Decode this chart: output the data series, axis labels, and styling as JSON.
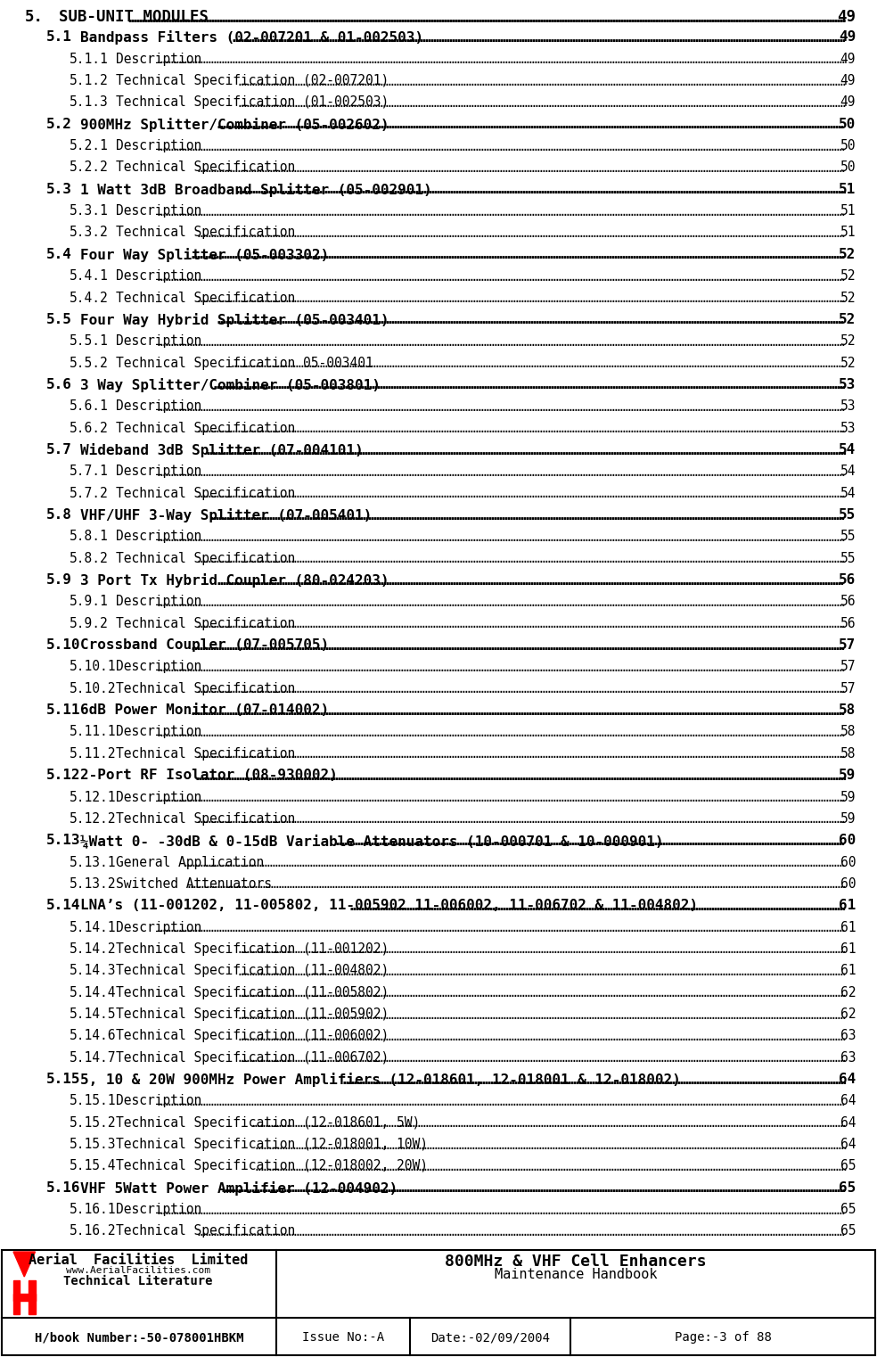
{
  "toc_entries": [
    {
      "level": 1,
      "number": "5.",
      "text": "SUB-UNIT MODULES",
      "page": "49",
      "bold": true
    },
    {
      "level": 2,
      "number": "5.1",
      "text": "Bandpass Filters (02-007201 & 01-002503)",
      "page": "49",
      "bold": true
    },
    {
      "level": 3,
      "number": "5.1.1",
      "text": "Description",
      "page": "49",
      "bold": false
    },
    {
      "level": 3,
      "number": "5.1.2",
      "text": "Technical Specification (02-007201)",
      "page": "49",
      "bold": false
    },
    {
      "level": 3,
      "number": "5.1.3",
      "text": "Technical Specification (01-002503)",
      "page": "49",
      "bold": false
    },
    {
      "level": 2,
      "number": "5.2",
      "text": "900MHz Splitter/Combiner (05-002602)",
      "page": "50",
      "bold": true
    },
    {
      "level": 3,
      "number": "5.2.1",
      "text": "Description",
      "page": "50",
      "bold": false
    },
    {
      "level": 3,
      "number": "5.2.2",
      "text": "Technical Specification",
      "page": "50",
      "bold": false
    },
    {
      "level": 2,
      "number": "5.3",
      "text": "1 Watt 3dB Broadband Splitter (05-002901)",
      "page": "51",
      "bold": true
    },
    {
      "level": 3,
      "number": "5.3.1",
      "text": "Description",
      "page": "51",
      "bold": false
    },
    {
      "level": 3,
      "number": "5.3.2",
      "text": "Technical Specification",
      "page": "51",
      "bold": false
    },
    {
      "level": 2,
      "number": "5.4",
      "text": "Four Way Splitter (05-003302)",
      "page": "52",
      "bold": true
    },
    {
      "level": 3,
      "number": "5.4.1",
      "text": "Description",
      "page": "52",
      "bold": false
    },
    {
      "level": 3,
      "number": "5.4.2",
      "text": "Technical Specification",
      "page": "52",
      "bold": false
    },
    {
      "level": 2,
      "number": "5.5",
      "text": "Four Way Hybrid Splitter (05-003401)",
      "page": "52",
      "bold": true
    },
    {
      "level": 3,
      "number": "5.5.1",
      "text": "Description",
      "page": "52",
      "bold": false
    },
    {
      "level": 3,
      "number": "5.5.2",
      "text": "Technical Specification 05-003401",
      "page": "52",
      "bold": false
    },
    {
      "level": 2,
      "number": "5.6",
      "text": "3 Way Splitter/Combiner (05-003801)",
      "page": "53",
      "bold": true
    },
    {
      "level": 3,
      "number": "5.6.1",
      "text": "Description",
      "page": "53",
      "bold": false
    },
    {
      "level": 3,
      "number": "5.6.2",
      "text": "Technical Specification",
      "page": "53",
      "bold": false
    },
    {
      "level": 2,
      "number": "5.7",
      "text": "Wideband 3dB Splitter (07-004101)",
      "page": "54",
      "bold": true
    },
    {
      "level": 3,
      "number": "5.7.1",
      "text": "Description",
      "page": "54",
      "bold": false
    },
    {
      "level": 3,
      "number": "5.7.2",
      "text": "Technical Specification",
      "page": "54",
      "bold": false
    },
    {
      "level": 2,
      "number": "5.8",
      "text": "VHF/UHF 3-Way Splitter (07-005401)",
      "page": "55",
      "bold": true
    },
    {
      "level": 3,
      "number": "5.8.1",
      "text": "Description",
      "page": "55",
      "bold": false
    },
    {
      "level": 3,
      "number": "5.8.2",
      "text": "Technical Specification",
      "page": "55",
      "bold": false
    },
    {
      "level": 2,
      "number": "5.9",
      "text": "3 Port Tx Hybrid Coupler (80-024203)",
      "page": "56",
      "bold": true
    },
    {
      "level": 3,
      "number": "5.9.1",
      "text": "Description",
      "page": "56",
      "bold": false
    },
    {
      "level": 3,
      "number": "5.9.2",
      "text": "Technical Specification",
      "page": "56",
      "bold": false
    },
    {
      "level": 2,
      "number": "5.10",
      "text": "Crossband Coupler (07-005705)",
      "page": "57",
      "bold": true
    },
    {
      "level": 3,
      "number": "5.10.1",
      "text": "Description",
      "page": "57",
      "bold": false
    },
    {
      "level": 3,
      "number": "5.10.2",
      "text": "Technical Specification",
      "page": "57",
      "bold": false
    },
    {
      "level": 2,
      "number": "5.11",
      "text": "6dB Power Monitor (07-014002)",
      "page": "58",
      "bold": true
    },
    {
      "level": 3,
      "number": "5.11.1",
      "text": "Description",
      "page": "58",
      "bold": false
    },
    {
      "level": 3,
      "number": "5.11.2",
      "text": "Technical Specification",
      "page": "58",
      "bold": false
    },
    {
      "level": 2,
      "number": "5.12",
      "text": "2-Port RF Isolator (08-930002)",
      "page": "59",
      "bold": true
    },
    {
      "level": 3,
      "number": "5.12.1",
      "text": "Description",
      "page": "59",
      "bold": false
    },
    {
      "level": 3,
      "number": "5.12.2",
      "text": "Technical Specification",
      "page": "59",
      "bold": false
    },
    {
      "level": 2,
      "number": "5.13",
      "text": "¼Watt 0- -30dB & 0-15dB Variable Attenuators (10-000701 & 10-000901)",
      "page": "60",
      "bold": true
    },
    {
      "level": 3,
      "number": "5.13.1",
      "text": "General Application",
      "page": "60",
      "bold": false
    },
    {
      "level": 3,
      "number": "5.13.2",
      "text": "Switched Attenuators",
      "page": "60",
      "bold": false
    },
    {
      "level": 2,
      "number": "5.14",
      "text": "LNA’s (11-001202, 11-005802, 11-005902 11-006002, 11-006702 & 11-004802)",
      "page": "61",
      "bold": true
    },
    {
      "level": 3,
      "number": "5.14.1",
      "text": "Description",
      "page": "61",
      "bold": false
    },
    {
      "level": 3,
      "number": "5.14.2",
      "text": "Technical Specification (11-001202)",
      "page": "61",
      "bold": false
    },
    {
      "level": 3,
      "number": "5.14.3",
      "text": "Technical Specification (11-004802)",
      "page": "61",
      "bold": false
    },
    {
      "level": 3,
      "number": "5.14.4",
      "text": "Technical Specification (11-005802)",
      "page": "62",
      "bold": false
    },
    {
      "level": 3,
      "number": "5.14.5",
      "text": "Technical Specification (11-005902)",
      "page": "62",
      "bold": false
    },
    {
      "level": 3,
      "number": "5.14.6",
      "text": "Technical Specification (11-006002)",
      "page": "63",
      "bold": false
    },
    {
      "level": 3,
      "number": "5.14.7",
      "text": "Technical Specification (11-006702)",
      "page": "63",
      "bold": false
    },
    {
      "level": 2,
      "number": "5.15",
      "text": "5, 10 & 20W 900MHz Power Amplifiers (12-018601, 12-018001 & 12-018002)",
      "page": "64",
      "bold": true
    },
    {
      "level": 3,
      "number": "5.15.1",
      "text": "Description",
      "page": "64",
      "bold": false
    },
    {
      "level": 3,
      "number": "5.15.2",
      "text": "Technical Specification (12-018601, 5W)",
      "page": "64",
      "bold": false
    },
    {
      "level": 3,
      "number": "5.15.3",
      "text": "Technical Specification (12-018001, 10W)",
      "page": "64",
      "bold": false
    },
    {
      "level": 3,
      "number": "5.15.4",
      "text": "Technical Specification (12-018002, 20W)",
      "page": "65",
      "bold": false
    },
    {
      "level": 2,
      "number": "5.16",
      "text": "VHF 5Watt Power Amplifier (12-004902)",
      "page": "65",
      "bold": true
    },
    {
      "level": 3,
      "number": "5.16.1",
      "text": "Description",
      "page": "65",
      "bold": false
    },
    {
      "level": 3,
      "number": "5.16.2",
      "text": "Technical Specification",
      "page": "65",
      "bold": false
    }
  ],
  "footer": {
    "company_name": "Aerial  Facilities  Limited",
    "company_url": "www.AerialFacilities.com",
    "company_sub": "Technical Literature",
    "doc_title": "800MHz & VHF Cell Enhancers",
    "doc_subtitle": "Maintenance Handbook",
    "hbook": "H/book Number:-50-078001HBKM",
    "issue": "Issue No:-A",
    "date": "Date:-02/09/2004",
    "page": "Page:-3 of 88"
  },
  "bg_color": "#ffffff",
  "text_color": "#000000",
  "font_family": "DejaVu Sans"
}
